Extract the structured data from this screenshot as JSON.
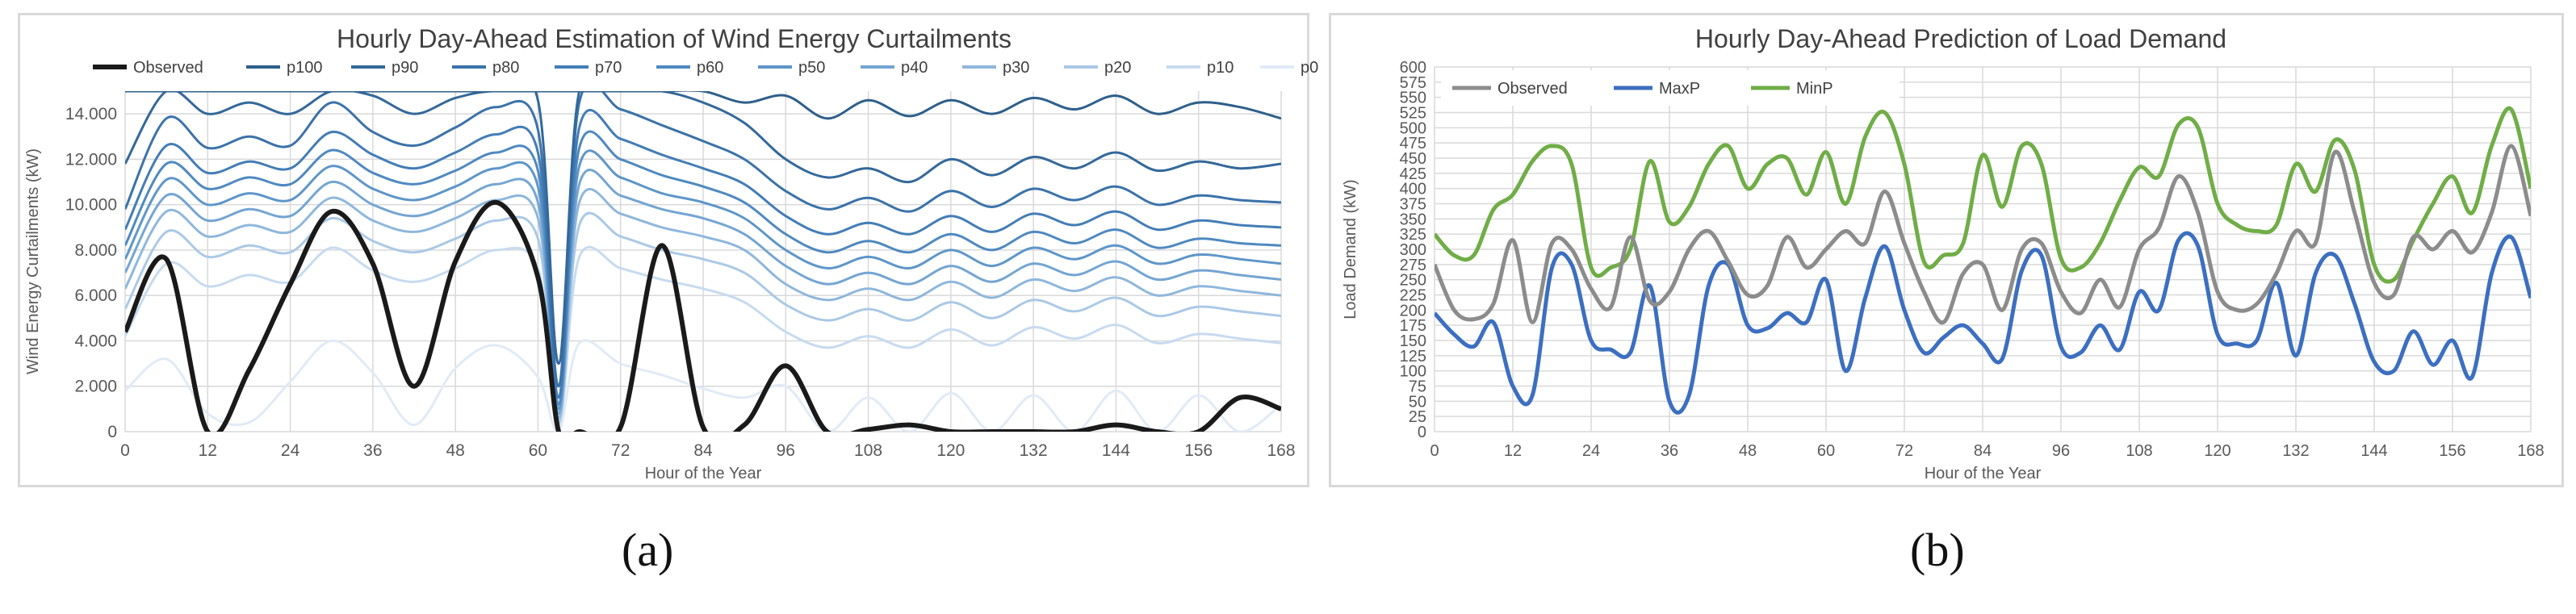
{
  "panel_labels": {
    "a": "(a)",
    "b": "(b)"
  },
  "colors": {
    "observed_a": "#1a1a1a",
    "series_a": [
      "#2e5f8a",
      "#34689a",
      "#3b72a9",
      "#437db6",
      "#4f89c0",
      "#5e96c9",
      "#74a5d2",
      "#8fb7dc",
      "#abc9e6",
      "#c7dbef",
      "#e1ebf6"
    ],
    "observed_b": "#8c8c8c",
    "maxp_b": "#3c6fc0",
    "minp_b": "#70ad47",
    "grid": "#d9d9d9",
    "axis_text": "#595959"
  },
  "chart_data": [
    {
      "type": "line",
      "title": "Hourly Day-Ahead Estimation of Wind Energy Curtailments",
      "xlabel": "Hour of the Year",
      "ylabel": "Wind Energy Curtailments (kW)",
      "xlim": [
        0,
        168
      ],
      "ylim": [
        0,
        15000
      ],
      "x_ticks": [
        0,
        12,
        24,
        36,
        48,
        60,
        72,
        84,
        96,
        108,
        120,
        132,
        144,
        156,
        168
      ],
      "y_ticks": [
        0,
        2000,
        4000,
        6000,
        8000,
        10000,
        12000,
        14000
      ],
      "y_tick_labels": [
        "0",
        "2.000",
        "4.000",
        "6.000",
        "8.000",
        "10.000",
        "12.000",
        "14.000"
      ],
      "legend_position": "top",
      "grid": true,
      "x": [
        0,
        6,
        12,
        18,
        24,
        30,
        36,
        42,
        48,
        54,
        60,
        63,
        66,
        72,
        78,
        84,
        90,
        96,
        102,
        108,
        114,
        120,
        126,
        132,
        138,
        144,
        150,
        156,
        162,
        168
      ],
      "series": [
        {
          "name": "Observed",
          "values": [
            4400,
            7600,
            0,
            2700,
            6500,
            9700,
            7400,
            2000,
            7500,
            10100,
            6800,
            0,
            0,
            200,
            8200,
            200,
            300,
            2900,
            0,
            100,
            300,
            0,
            0,
            0,
            0,
            300,
            0,
            0,
            1500,
            1000
          ]
        },
        {
          "name": "p100",
          "values": [
            15000,
            15000,
            15000,
            15000,
            15000,
            15000,
            15000,
            15000,
            15000,
            15000,
            15000,
            15000,
            15000,
            15000,
            15000,
            15000,
            14500,
            14800,
            13800,
            14600,
            13900,
            14600,
            14000,
            14700,
            14200,
            14800,
            14000,
            14500,
            14300,
            13800
          ]
        },
        {
          "name": "p90",
          "values": [
            11800,
            15000,
            14000,
            14500,
            14000,
            15000,
            14800,
            14000,
            14700,
            15000,
            14600,
            3000,
            15000,
            15000,
            15000,
            14500,
            13600,
            12000,
            11200,
            11600,
            11000,
            12000,
            11300,
            12100,
            11600,
            12300,
            11500,
            11900,
            11600,
            11800
          ]
        },
        {
          "name": "p80",
          "values": [
            9800,
            13800,
            12500,
            13000,
            12600,
            14500,
            13200,
            12600,
            13400,
            14300,
            13300,
            2000,
            14500,
            14200,
            13500,
            12800,
            12000,
            10600,
            9800,
            10300,
            9700,
            10600,
            9900,
            10700,
            10200,
            10800,
            10000,
            10400,
            10200,
            10100
          ]
        },
        {
          "name": "p70",
          "values": [
            8900,
            12600,
            11400,
            11900,
            11600,
            13200,
            12200,
            11600,
            12300,
            13100,
            12300,
            1500,
            13400,
            12900,
            12200,
            11600,
            10900,
            9500,
            8700,
            9200,
            8700,
            9500,
            8800,
            9600,
            9100,
            9700,
            8900,
            9300,
            9100,
            9000
          ]
        },
        {
          "name": "p60",
          "values": [
            8200,
            11800,
            10700,
            11200,
            10900,
            12400,
            11400,
            10900,
            11500,
            12300,
            11500,
            1200,
            12500,
            12000,
            11300,
            10800,
            10100,
            8700,
            7900,
            8400,
            7900,
            8700,
            8000,
            8800,
            8300,
            8900,
            8100,
            8500,
            8300,
            8200
          ]
        },
        {
          "name": "p50",
          "values": [
            7600,
            11100,
            10000,
            10500,
            10200,
            11700,
            10700,
            10200,
            10800,
            11600,
            10800,
            1000,
            11700,
            11200,
            10500,
            10100,
            9400,
            8000,
            7200,
            7700,
            7200,
            8000,
            7300,
            8100,
            7600,
            8200,
            7400,
            7800,
            7600,
            7400
          ]
        },
        {
          "name": "p40",
          "values": [
            7000,
            10400,
            9300,
            9800,
            9500,
            11000,
            10000,
            9500,
            10100,
            10900,
            10100,
            800,
            10900,
            10400,
            9800,
            9400,
            8700,
            7300,
            6500,
            7000,
            6500,
            7300,
            6600,
            7400,
            6900,
            7500,
            6700,
            7100,
            6900,
            6700
          ]
        },
        {
          "name": "p30",
          "values": [
            6300,
            9700,
            8600,
            9100,
            8800,
            10300,
            9300,
            8800,
            9400,
            10200,
            9400,
            600,
            10100,
            9600,
            9000,
            8600,
            8000,
            6500,
            5800,
            6300,
            5800,
            6600,
            5900,
            6700,
            6200,
            6800,
            6000,
            6400,
            6200,
            6000
          ]
        },
        {
          "name": "p20",
          "values": [
            5400,
            8800,
            7700,
            8200,
            7900,
            9400,
            8400,
            7900,
            8500,
            9300,
            8500,
            400,
            9100,
            8600,
            8000,
            7600,
            7000,
            5600,
            4900,
            5400,
            4900,
            5700,
            5000,
            5800,
            5300,
            5900,
            5100,
            5500,
            5300,
            5100
          ]
        },
        {
          "name": "p10",
          "values": [
            4200,
            7400,
            6400,
            6900,
            6600,
            8100,
            7100,
            6600,
            7200,
            8000,
            7200,
            300,
            7700,
            7200,
            6700,
            6300,
            5700,
            4400,
            3700,
            4200,
            3700,
            4500,
            3800,
            4600,
            4100,
            4700,
            3900,
            4300,
            4100,
            3900
          ]
        },
        {
          "name": "p0",
          "values": [
            1800,
            3200,
            800,
            400,
            2200,
            4000,
            2600,
            300,
            2800,
            3800,
            2400,
            0,
            3900,
            3000,
            2500,
            1900,
            1500,
            2000,
            0,
            1500,
            0,
            1700,
            0,
            1600,
            0,
            1800,
            0,
            1600,
            0,
            1200
          ]
        }
      ]
    },
    {
      "type": "line",
      "title": "Hourly Day-Ahead Prediction of Load Demand",
      "xlabel": "Hour of the Year",
      "ylabel": "Load Demand (kW)",
      "xlim": [
        0,
        168
      ],
      "ylim": [
        0,
        600
      ],
      "x_ticks": [
        0,
        12,
        24,
        36,
        48,
        60,
        72,
        84,
        96,
        108,
        120,
        132,
        144,
        156,
        168
      ],
      "y_ticks": [
        0,
        25,
        50,
        75,
        100,
        125,
        150,
        175,
        200,
        225,
        250,
        275,
        300,
        325,
        350,
        375,
        400,
        425,
        450,
        475,
        500,
        525,
        550,
        575,
        600
      ],
      "legend_position": "top-left",
      "grid": true,
      "x": [
        0,
        3,
        6,
        9,
        12,
        15,
        18,
        21,
        24,
        27,
        30,
        33,
        36,
        39,
        42,
        45,
        48,
        51,
        54,
        57,
        60,
        63,
        66,
        69,
        72,
        75,
        78,
        81,
        84,
        87,
        90,
        93,
        96,
        99,
        102,
        105,
        108,
        111,
        114,
        117,
        120,
        123,
        126,
        129,
        132,
        135,
        138,
        141,
        144,
        147,
        150,
        153,
        156,
        159,
        162,
        165,
        168
      ],
      "series": [
        {
          "name": "Observed",
          "values": [
            275,
            200,
            185,
            210,
            315,
            180,
            310,
            300,
            235,
            205,
            320,
            215,
            230,
            300,
            330,
            280,
            225,
            240,
            320,
            270,
            300,
            330,
            310,
            395,
            310,
            230,
            180,
            260,
            275,
            200,
            300,
            310,
            230,
            195,
            250,
            205,
            300,
            335,
            420,
            360,
            230,
            200,
            210,
            260,
            330,
            310,
            460,
            360,
            245,
            225,
            320,
            300,
            330,
            295,
            360,
            470,
            355
          ]
        },
        {
          "name": "MaxP",
          "values": [
            195,
            160,
            140,
            180,
            75,
            60,
            270,
            275,
            150,
            135,
            130,
            240,
            50,
            60,
            240,
            275,
            175,
            170,
            195,
            180,
            250,
            100,
            220,
            305,
            200,
            130,
            155,
            175,
            145,
            120,
            265,
            290,
            140,
            130,
            175,
            135,
            230,
            200,
            315,
            305,
            160,
            145,
            150,
            245,
            125,
            260,
            290,
            210,
            115,
            100,
            165,
            110,
            150,
            90,
            260,
            320,
            220
          ]
        },
        {
          "name": "MinP",
          "values": [
            325,
            290,
            290,
            365,
            390,
            445,
            470,
            440,
            270,
            270,
            300,
            445,
            345,
            370,
            440,
            470,
            400,
            440,
            450,
            390,
            460,
            375,
            485,
            525,
            440,
            280,
            290,
            310,
            455,
            370,
            470,
            440,
            285,
            270,
            310,
            380,
            435,
            420,
            505,
            500,
            375,
            340,
            330,
            340,
            440,
            395,
            480,
            430,
            275,
            250,
            315,
            375,
            420,
            360,
            470,
            530,
            400
          ]
        }
      ]
    }
  ]
}
